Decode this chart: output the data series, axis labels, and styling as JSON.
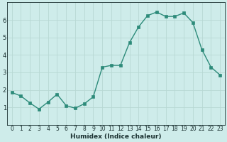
{
  "x": [
    0,
    1,
    2,
    3,
    4,
    5,
    6,
    7,
    8,
    9,
    10,
    11,
    12,
    13,
    14,
    15,
    16,
    17,
    18,
    19,
    20,
    21,
    22,
    23
  ],
  "y": [
    1.85,
    1.65,
    1.25,
    0.9,
    1.3,
    1.75,
    1.1,
    0.95,
    1.2,
    1.6,
    3.3,
    3.4,
    3.4,
    4.7,
    5.6,
    6.25,
    6.45,
    6.2,
    6.2,
    6.4,
    5.85,
    4.3,
    3.3,
    2.85
  ],
  "line_color": "#2d8b7a",
  "bg_color": "#ceecea",
  "grid_color": "#b8d8d4",
  "xlabel": "Humidex (Indice chaleur)",
  "xlim": [
    -0.5,
    23.5
  ],
  "ylim": [
    0,
    7
  ],
  "yticks": [
    1,
    2,
    3,
    4,
    5,
    6
  ],
  "xtick_labels": [
    "0",
    "1",
    "2",
    "3",
    "4",
    "5",
    "6",
    "7",
    "8",
    "9",
    "10",
    "11",
    "12",
    "13",
    "14",
    "15",
    "16",
    "17",
    "18",
    "19",
    "20",
    "21",
    "22",
    "23"
  ],
  "marker_size": 2.5,
  "line_width": 1.0,
  "font_color": "#1a3030",
  "tick_fontsize": 5.5,
  "xlabel_fontsize": 6.5
}
